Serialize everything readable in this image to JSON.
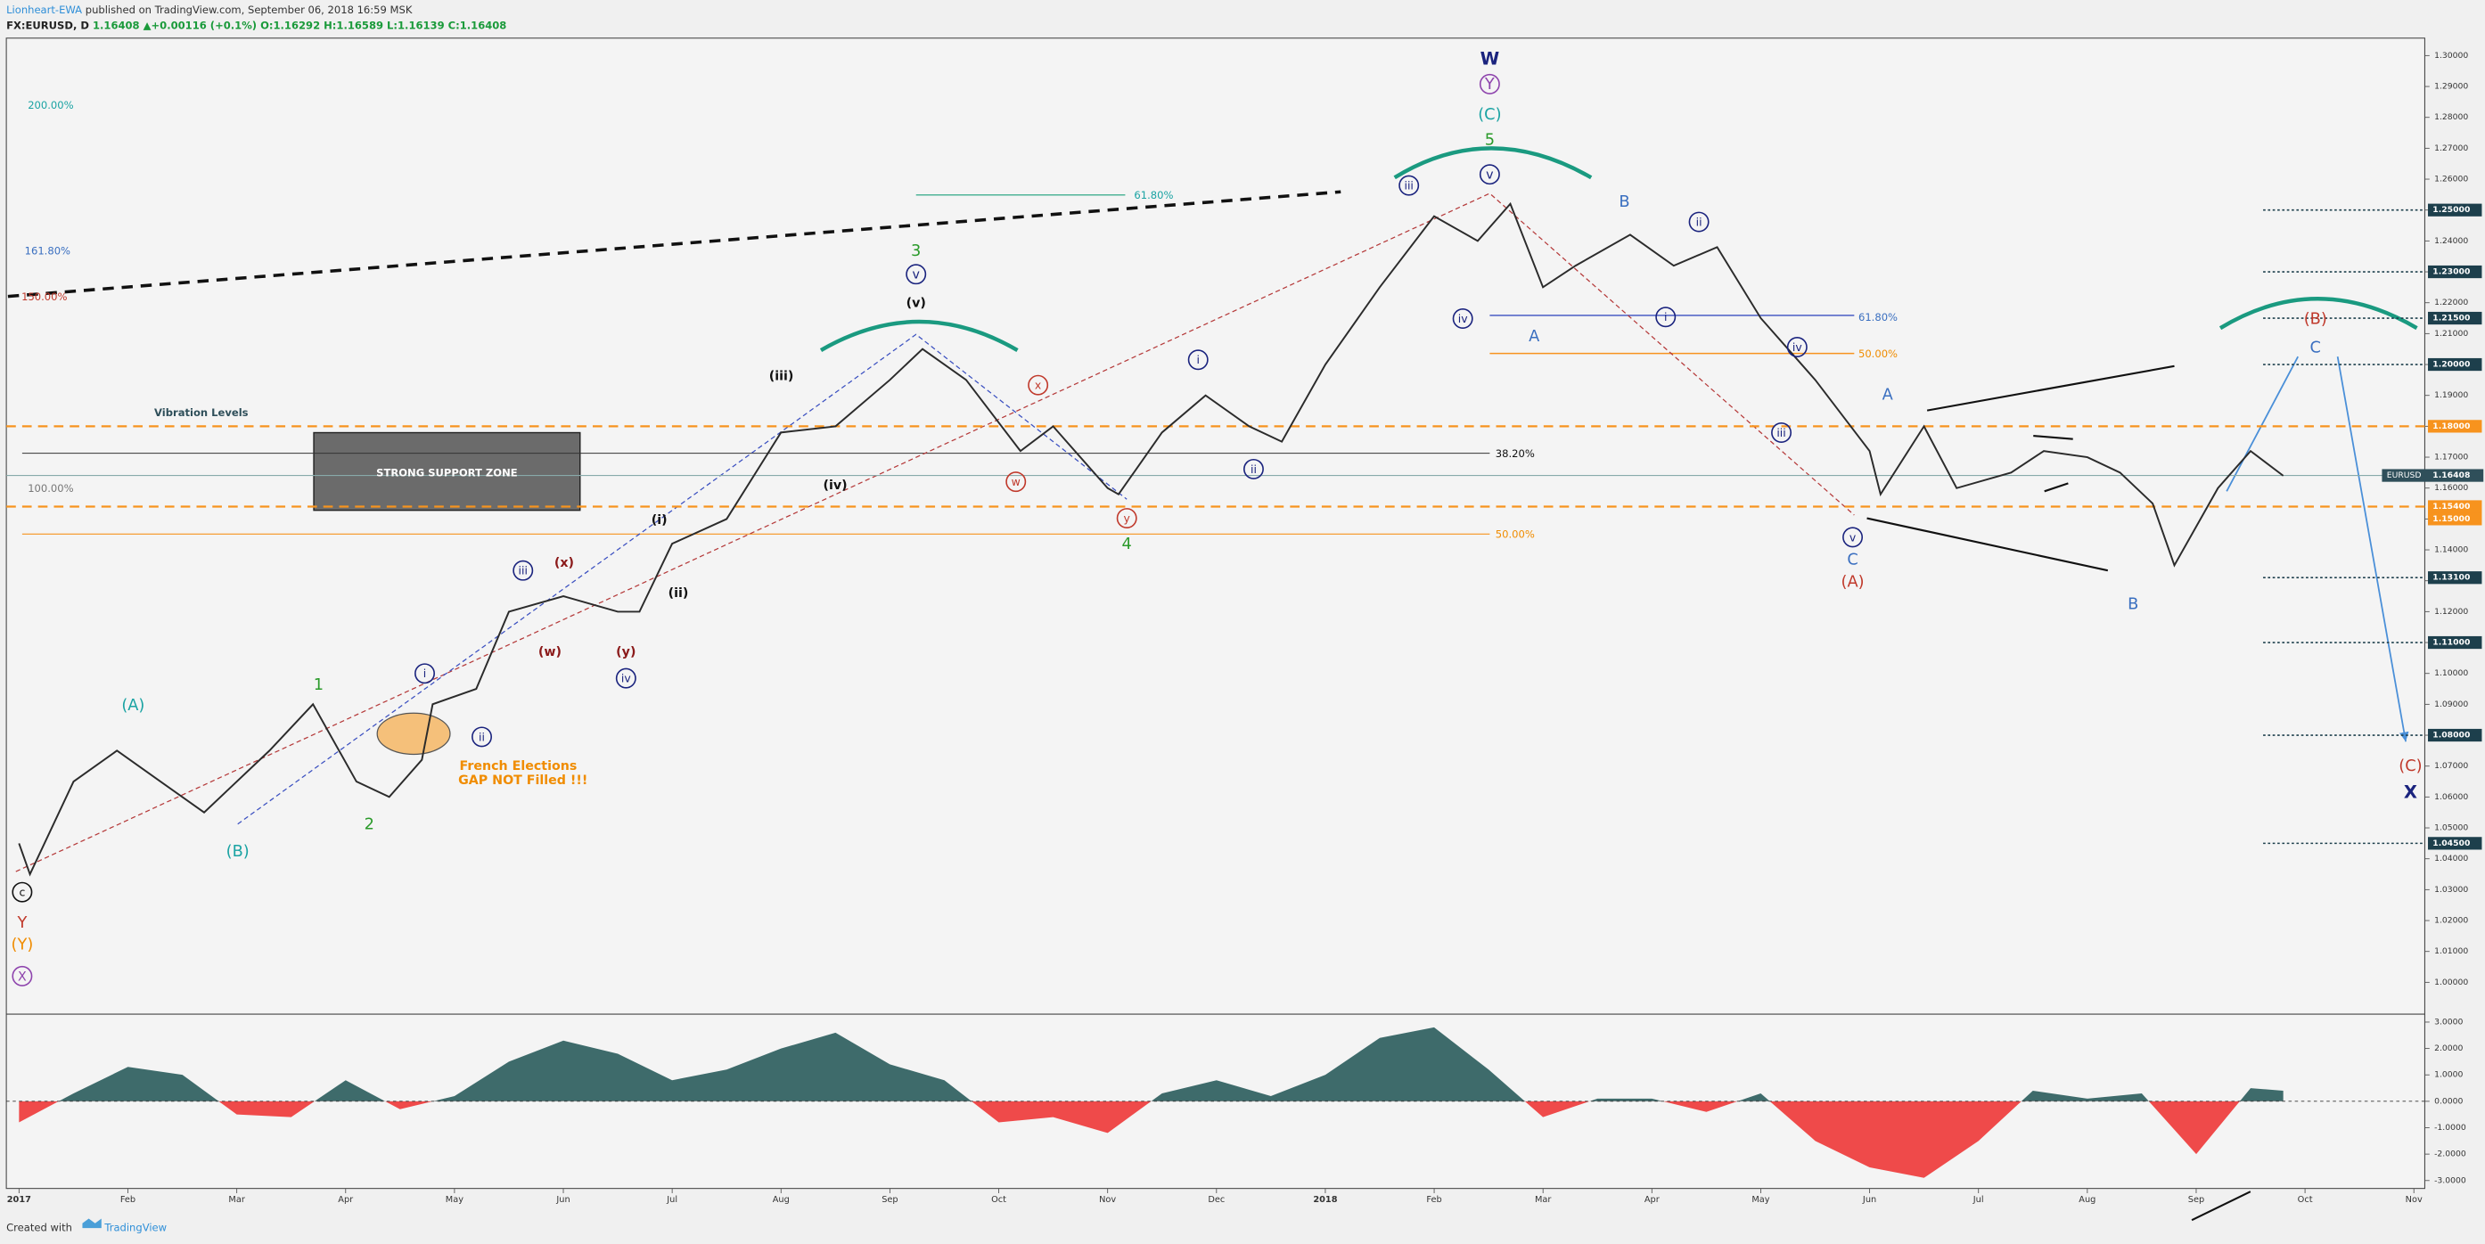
{
  "header": {
    "author": "Lionheart-EWA",
    "published": "published on TradingView.com, September 06, 2018 16:59 MSK",
    "symbol": "FX:EURUSD, D",
    "last": "1.16408",
    "arrow": "▲",
    "change": "+0.00116 (+0.1%)",
    "open": "O:1.16292",
    "high": "H:1.16589",
    "low": "L:1.16139",
    "close": "C:1.16408"
  },
  "chart_data": [
    {
      "type": "line",
      "x": [
        0,
        0.1,
        0.5,
        0.9,
        1.3,
        1.7,
        2.3,
        2.7,
        3.1,
        3.4,
        3.7,
        3.8,
        4.2,
        4.5,
        5.0,
        5.5,
        5.7,
        6.0,
        6.5,
        7.0,
        7.5,
        8.0,
        8.3,
        8.7,
        9.2,
        9.5,
        10.0,
        10.1,
        10.5,
        10.9,
        11.3,
        11.6,
        12.0,
        12.5,
        13.0,
        13.4,
        13.7,
        14.0,
        14.3,
        14.8,
        15.2,
        15.6,
        16.0,
        16.5,
        17.0,
        17.1,
        17.5,
        17.8,
        18.3,
        18.6,
        19.0,
        19.3,
        19.6,
        19.8,
        20.2,
        20.5,
        20.8
      ],
      "series": [
        {
          "name": "EURUSD",
          "color": "#2b2b2b",
          "values": [
            1.045,
            1.035,
            1.065,
            1.075,
            1.065,
            1.055,
            1.075,
            1.09,
            1.065,
            1.06,
            1.072,
            1.09,
            1.095,
            1.12,
            1.125,
            1.12,
            1.12,
            1.142,
            1.15,
            1.178,
            1.18,
            1.195,
            1.205,
            1.195,
            1.172,
            1.18,
            1.16,
            1.158,
            1.178,
            1.19,
            1.18,
            1.175,
            1.2,
            1.225,
            1.248,
            1.24,
            1.252,
            1.225,
            1.232,
            1.242,
            1.232,
            1.238,
            1.215,
            1.195,
            1.172,
            1.158,
            1.18,
            1.16,
            1.165,
            1.172,
            1.17,
            1.165,
            1.155,
            1.135,
            1.16,
            1.172,
            1.164
          ]
        }
      ],
      "xlim": [
        -0.175,
        22.1
      ],
      "xticks": [
        {
          "value": 0,
          "label": "2017"
        },
        {
          "value": 1,
          "label": "Feb"
        },
        {
          "value": 2,
          "label": "Mar"
        },
        {
          "value": 3,
          "label": "Apr"
        },
        {
          "value": 4,
          "label": "May"
        },
        {
          "value": 5,
          "label": "Jun"
        },
        {
          "value": 6,
          "label": "Jul"
        },
        {
          "value": 7,
          "label": "Aug"
        },
        {
          "value": 8,
          "label": "Sep"
        },
        {
          "value": 9,
          "label": "Oct"
        },
        {
          "value": 10,
          "label": "Nov"
        },
        {
          "value": 11,
          "label": "Dec"
        },
        {
          "value": 12,
          "label": "2018"
        },
        {
          "value": 13,
          "label": "Feb"
        },
        {
          "value": 14,
          "label": "Mar"
        },
        {
          "value": 15,
          "label": "Apr"
        },
        {
          "value": 16,
          "label": "May"
        },
        {
          "value": 17,
          "label": "Jun"
        },
        {
          "value": 18,
          "label": "Jul"
        },
        {
          "value": 19,
          "label": "Aug"
        },
        {
          "value": 20,
          "label": "Sep"
        },
        {
          "value": 21,
          "label": "Oct"
        },
        {
          "value": 22,
          "label": "Nov"
        }
      ],
      "ylim": [
        0.9897,
        1.3036
      ],
      "yticks": [
        {
          "value": 1.0,
          "label": "1.00000"
        },
        {
          "value": 1.01,
          "label": "1.01000"
        },
        {
          "value": 1.02,
          "label": "1.02000"
        },
        {
          "value": 1.03,
          "label": "1.03000"
        },
        {
          "value": 1.04,
          "label": "1.04000"
        },
        {
          "value": 1.05,
          "label": "1.05000"
        },
        {
          "value": 1.06,
          "label": "1.06000"
        },
        {
          "value": 1.07,
          "label": "1.07000"
        },
        {
          "value": 1.08,
          "label": "1.08000"
        },
        {
          "value": 1.09,
          "label": "1.09000"
        },
        {
          "value": 1.1,
          "label": "1.10000"
        },
        {
          "value": 1.11,
          "label": "1.11000"
        },
        {
          "value": 1.12,
          "label": "1.12000"
        },
        {
          "value": 1.13,
          "label": "1.13000"
        },
        {
          "value": 1.14,
          "label": "1.14000"
        },
        {
          "value": 1.15,
          "label": "1.15000"
        },
        {
          "value": 1.16,
          "label": "1.16000"
        },
        {
          "value": 1.17,
          "label": "1.17000"
        },
        {
          "value": 1.18,
          "label": "1.18000"
        },
        {
          "value": 1.19,
          "label": "1.19000"
        },
        {
          "value": 1.2,
          "label": "1.20000"
        },
        {
          "value": 1.21,
          "label": "1.21000"
        },
        {
          "value": 1.22,
          "label": "1.22000"
        },
        {
          "value": 1.23,
          "label": "1.23000"
        },
        {
          "value": 1.24,
          "label": "1.24000"
        },
        {
          "value": 1.25,
          "label": "1.25000"
        },
        {
          "value": 1.26,
          "label": "1.26000"
        },
        {
          "value": 1.27,
          "label": "1.27000"
        },
        {
          "value": 1.28,
          "label": "1.28000"
        },
        {
          "value": 1.29,
          "label": "1.29000"
        },
        {
          "value": 1.3,
          "label": "1.30000"
        }
      ],
      "levels": [
        {
          "value": 1.25,
          "label": "1.25000",
          "color": "#1d3f4c",
          "style": "dotted"
        },
        {
          "value": 1.23,
          "label": "1.23000",
          "color": "#1d3f4c",
          "style": "dotted"
        },
        {
          "value": 1.215,
          "label": "1.21500",
          "color": "#1d3f4c",
          "style": "dotted"
        },
        {
          "value": 1.2,
          "label": "1.20000",
          "color": "#1d3f4c",
          "style": "dotted"
        },
        {
          "value": 1.18,
          "label": "1.18000",
          "color": "#f7931e",
          "style": "dashed"
        },
        {
          "value": 1.154,
          "label": "1.15400",
          "color": "#f7931e",
          "style": "dashed"
        },
        {
          "value": 1.15,
          "label": "1.15000",
          "color": "#f7931e",
          "style": "none"
        },
        {
          "value": 1.131,
          "label": "1.13100",
          "color": "#1d3f4c",
          "style": "dotted"
        },
        {
          "value": 1.11,
          "label": "1.11000",
          "color": "#1d3f4c",
          "style": "dotted"
        },
        {
          "value": 1.08,
          "label": "1.08000",
          "color": "#1d3f4c",
          "style": "dotted"
        },
        {
          "value": 1.045,
          "label": "1.04500",
          "color": "#1d3f4c",
          "style": "dotted"
        }
      ],
      "last_price": {
        "name": "EURUSD",
        "value": 1.16408,
        "label": "1.16408",
        "color": "#2f4f5a"
      },
      "annotations": [
        "W",
        "Y",
        "(C)",
        "5",
        "v",
        "iii",
        "iv",
        "A",
        "B",
        "ii",
        "i",
        "iv",
        "iii",
        "v",
        "C",
        "(A)",
        "A",
        "B",
        "(B)",
        "C",
        "(C)",
        "X",
        "3",
        "v",
        "(v)",
        "(iii)",
        "(iv)",
        "x",
        "w",
        "y",
        "4",
        "i",
        "ii",
        "(i)",
        "(ii)",
        "iii",
        "(x)",
        "(w)",
        "(y)",
        "iv",
        "i",
        "ii",
        "1",
        "2",
        "(A)",
        "(B)",
        "c",
        "Y",
        "(Y)",
        "X",
        "200.00%",
        "161.80%",
        "150.00%",
        "100.00%",
        "61.80%",
        "38.20%",
        "50.00%",
        "61.80%",
        "50.00%",
        "Vibration Levels",
        "STRONG SUPPORT ZONE",
        "French Elections",
        "GAP NOT Filled !!!"
      ]
    },
    {
      "type": "area",
      "x": [
        0,
        0.5,
        1,
        1.5,
        2,
        2.5,
        3,
        3.5,
        4,
        4.5,
        5,
        5.5,
        6,
        6.5,
        7,
        7.5,
        8,
        8.5,
        9,
        9.5,
        10,
        10.5,
        11,
        11.5,
        12,
        12.5,
        13,
        13.5,
        14,
        14.5,
        15,
        15.5,
        16,
        16.5,
        17,
        17.5,
        18,
        18.5,
        19,
        19.5,
        20,
        20.5,
        20.8
      ],
      "values": [
        -0.8,
        0.3,
        1.3,
        1.0,
        -0.5,
        -0.6,
        0.8,
        -0.3,
        0.2,
        1.5,
        2.3,
        1.8,
        0.8,
        1.2,
        2.0,
        2.6,
        1.4,
        0.8,
        -0.8,
        -0.6,
        -1.2,
        0.3,
        0.8,
        0.2,
        1.0,
        2.4,
        2.8,
        1.2,
        -0.6,
        0.1,
        0.1,
        -0.4,
        0.3,
        -1.5,
        -2.5,
        -2.9,
        -1.5,
        0.4,
        0.1,
        0.3,
        -2.0,
        0.5,
        0.4
      ],
      "pos_color": "#3e6b6b",
      "neg_color": "#ef4a4a",
      "ylim": [
        -3.3,
        3.18
      ],
      "yticks": [
        {
          "value": 3,
          "label": "3.0000"
        },
        {
          "value": 2,
          "label": "2.0000"
        },
        {
          "value": 1,
          "label": "1.0000"
        },
        {
          "value": 0,
          "label": "0.0000"
        },
        {
          "value": -1,
          "label": "-1.0000"
        },
        {
          "value": -2,
          "label": "-2.0000"
        },
        {
          "value": -3,
          "label": "-3.0000"
        }
      ]
    }
  ],
  "footer": {
    "created": "Created with",
    "brand": "TradingView"
  }
}
